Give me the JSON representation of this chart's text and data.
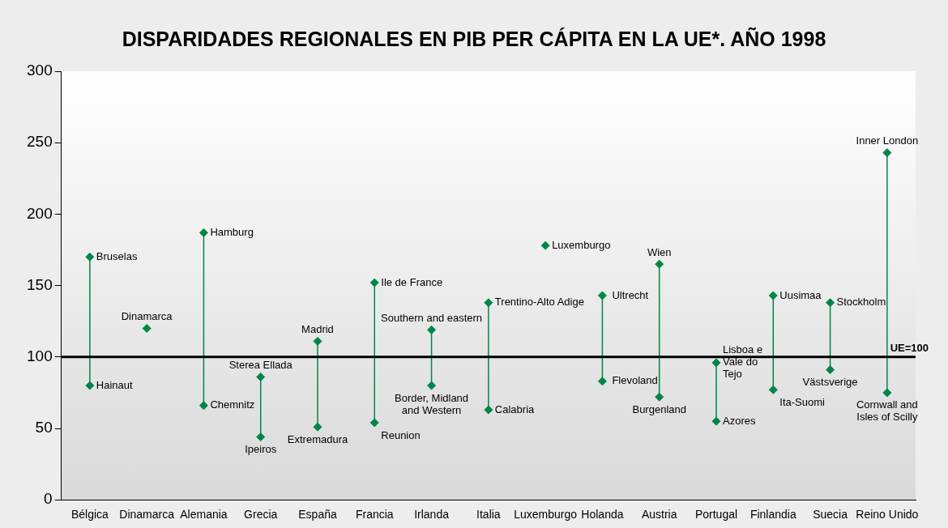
{
  "chart_data": {
    "type": "scatter",
    "title": "DISPARIDADES REGIONALES EN PIB PER CÁPITA EN LA UE*. AÑO 1998",
    "categories": [
      "Bélgica",
      "Dinamarca",
      "Alemania",
      "Grecia",
      "España",
      "Francia",
      "Irlanda",
      "Italia",
      "Luxemburgo",
      "Holanda",
      "Austria",
      "Portugal",
      "Finlandia",
      "Suecia",
      "Reino Unido"
    ],
    "series": [
      {
        "type": "scatter",
        "color": "#00854a",
        "values": [
          170,
          120,
          187,
          86,
          111,
          152,
          119,
          138,
          178,
          143,
          165,
          96,
          143,
          138,
          243
        ]
      },
      {
        "type": "scatter",
        "color": "#00854a",
        "values": [
          80,
          null,
          66,
          44,
          51,
          54,
          80,
          63,
          null,
          83,
          72,
          55,
          77,
          91,
          75
        ]
      }
    ],
    "ylim": [
      0,
      300
    ],
    "yticks": [
      0,
      50,
      100,
      150,
      200,
      250,
      300
    ],
    "grid": false,
    "legend": false,
    "marker": "diamond",
    "ref_lines": [
      {
        "axis": "y",
        "value": 100,
        "label": "UE=100",
        "color": "#000000"
      }
    ],
    "annotations": [
      {
        "text": "Bruselas",
        "x": "Bélgica",
        "y": 170
      },
      {
        "text": "Hainaut",
        "x": "Bélgica",
        "y": 80
      },
      {
        "text": "Dinamarca",
        "x": "Dinamarca",
        "y": 120
      },
      {
        "text": "Hamburg",
        "x": "Alemania",
        "y": 187
      },
      {
        "text": "Chemnitz",
        "x": "Alemania",
        "y": 66
      },
      {
        "text": "Sterea Ellada",
        "x": "Grecia",
        "y": 86
      },
      {
        "text": "Ipeiros",
        "x": "Grecia",
        "y": 44
      },
      {
        "text": "Madrid",
        "x": "España",
        "y": 111
      },
      {
        "text": "Extremadura",
        "x": "España",
        "y": 51
      },
      {
        "text": "Ile de France",
        "x": "Francia",
        "y": 152
      },
      {
        "text": "Reunion",
        "x": "Francia",
        "y": 54
      },
      {
        "text": "Southern and eastern",
        "x": "Irlanda",
        "y": 119
      },
      {
        "text": "Border, Midland\nand Western",
        "x": "Irlanda",
        "y": 80
      },
      {
        "text": "Trentino-Alto Adige",
        "x": "Italia",
        "y": 138
      },
      {
        "text": "Calabria",
        "x": "Italia",
        "y": 63
      },
      {
        "text": "Luxemburgo",
        "x": "Luxemburgo",
        "y": 178
      },
      {
        "text": "Ultrecht",
        "x": "Holanda",
        "y": 143
      },
      {
        "text": "Flevoland",
        "x": "Holanda",
        "y": 83
      },
      {
        "text": "Wien",
        "x": "Austria",
        "y": 165
      },
      {
        "text": "Burgenland",
        "x": "Austria",
        "y": 72
      },
      {
        "text": "Lisboa e\nVale do\nTejo",
        "x": "Portugal",
        "y": 96
      },
      {
        "text": "Azores",
        "x": "Portugal",
        "y": 55
      },
      {
        "text": "Uusimaa",
        "x": "Finlandia",
        "y": 143
      },
      {
        "text": "Ita-Suomi",
        "x": "Finlandia",
        "y": 77
      },
      {
        "text": "Stockholm",
        "x": "Suecia",
        "y": 138
      },
      {
        "text": "Västsverige",
        "x": "Suecia",
        "y": 91
      },
      {
        "text": "Inner London",
        "x": "Reino Unido",
        "y": 243
      },
      {
        "text": "Cornwall and\nIsles of Scilly",
        "x": "Reino Unido",
        "y": 75
      }
    ]
  }
}
